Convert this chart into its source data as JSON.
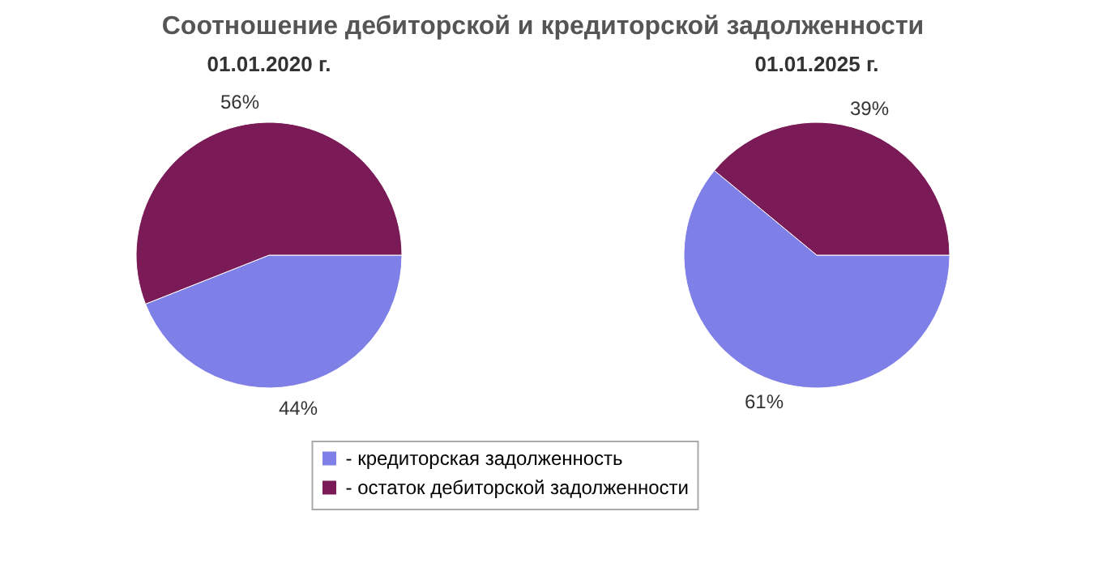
{
  "chart_data": [
    {
      "type": "pie",
      "title": "Соотношение дебиторской и кредиторской задолженности",
      "subtitle": "01.01.2020 г.",
      "categories": [
        "- кредиторская задолженность",
        "- остаток дебиторской задолженности"
      ],
      "values": [
        44,
        56
      ],
      "colors": [
        "#7f7fe8",
        "#7a1a57"
      ],
      "value_labels": [
        "44%",
        "56%"
      ],
      "legend": "bottom"
    },
    {
      "type": "pie",
      "subtitle": "01.01.2025 г.",
      "values": [
        61,
        39
      ],
      "colors": [
        "#7f7fe8",
        "#7a1a57"
      ],
      "value_labels": [
        "61%",
        "39%"
      ]
    }
  ]
}
